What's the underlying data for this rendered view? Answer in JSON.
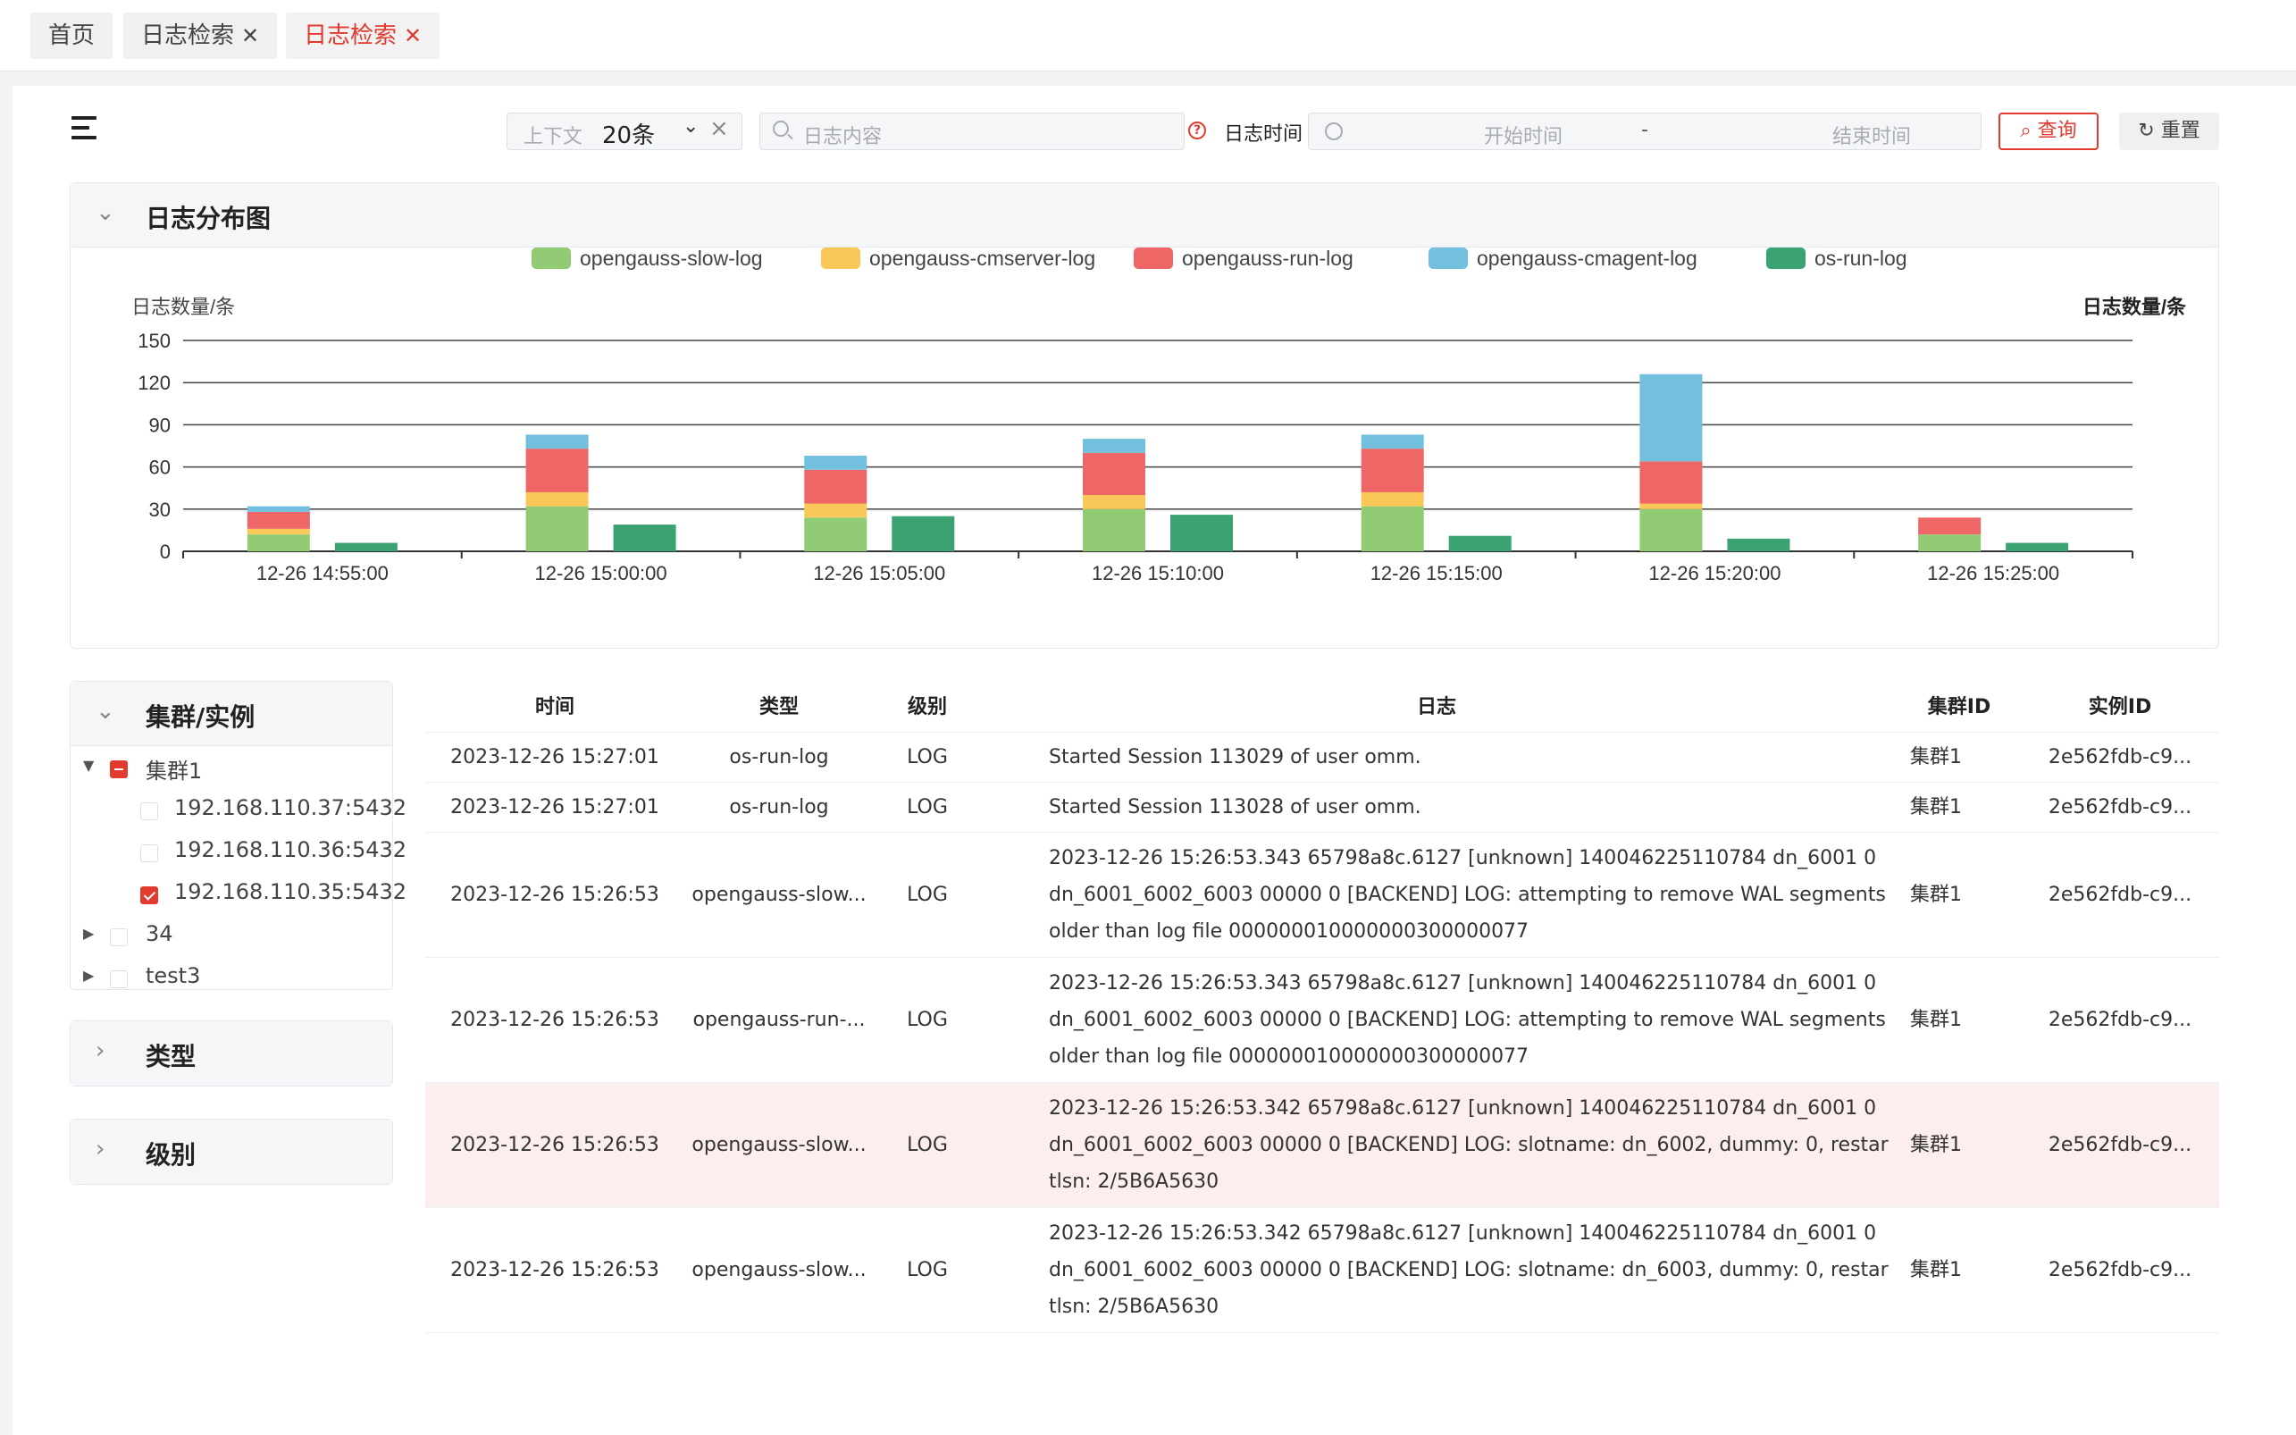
{
  "tabs": [
    {
      "label": "首页",
      "closable": false
    },
    {
      "label": "日志检索",
      "closable": true
    },
    {
      "label": "日志检索",
      "closable": true,
      "active": true
    }
  ],
  "toolbar": {
    "context_prefix": "上下文",
    "context_value": "20条",
    "search_placeholder": "日志内容",
    "time_label": "日志时间",
    "start_placeholder": "开始时间",
    "range_separator": "-",
    "end_placeholder": "结束时间",
    "query_label": "查询",
    "reset_label": "重置"
  },
  "chart_panel": {
    "title": "日志分布图"
  },
  "chart_data": {
    "type": "bar",
    "stacked": true,
    "ylabel": "日志数量/条",
    "ylabel_right": "日志数量/条",
    "ylim": [
      0,
      150
    ],
    "yticks": [
      0,
      30,
      60,
      90,
      120,
      150
    ],
    "categories": [
      "12-26 14:55:00",
      "12-26 15:00:00",
      "12-26 15:05:00",
      "12-26 15:10:00",
      "12-26 15:15:00",
      "12-26 15:20:00",
      "12-26 15:25:00"
    ],
    "legend_position": "top",
    "grid": true,
    "series": [
      {
        "name": "opengauss-slow-log",
        "color": "#91cc75",
        "stack": "opengauss",
        "values": [
          12,
          32,
          24,
          30,
          32,
          30,
          12
        ]
      },
      {
        "name": "opengauss-cmserver-log",
        "color": "#fac858",
        "stack": "opengauss",
        "values": [
          4,
          10,
          10,
          10,
          10,
          4,
          0
        ]
      },
      {
        "name": "opengauss-run-log",
        "color": "#ee6666",
        "stack": "opengauss",
        "values": [
          12,
          31,
          24,
          30,
          31,
          30,
          12
        ]
      },
      {
        "name": "opengauss-cmagent-log",
        "color": "#73c0de",
        "stack": "opengauss",
        "values": [
          4,
          10,
          10,
          10,
          10,
          62,
          0
        ]
      },
      {
        "name": "os-run-log",
        "color": "#3ba272",
        "stack": "os",
        "values": [
          6,
          19,
          25,
          26,
          11,
          9,
          6
        ]
      }
    ]
  },
  "filters": {
    "cluster_title": "集群/实例",
    "tree": [
      {
        "label": "集群1",
        "expanded": true,
        "state": "partial",
        "children": [
          {
            "label": "192.168.110.37:5432",
            "state": "unchecked"
          },
          {
            "label": "192.168.110.36:5432",
            "state": "unchecked"
          },
          {
            "label": "192.168.110.35:5432",
            "state": "checked"
          }
        ]
      },
      {
        "label": "34",
        "expanded": false,
        "state": "unchecked"
      },
      {
        "label": "test3",
        "expanded": false,
        "state": "unchecked"
      }
    ],
    "type_title": "类型",
    "level_title": "级别"
  },
  "table": {
    "headers": [
      "时间",
      "类型",
      "级别",
      "日志",
      "集群ID",
      "实例ID"
    ],
    "rows": [
      {
        "time": "2023-12-26 15:27:01",
        "type": "os-run-log",
        "level": "LOG",
        "log": "Started Session 113029 of user omm.",
        "cluster": "集群1",
        "instance": "2e562fdb-c9..."
      },
      {
        "time": "2023-12-26 15:27:01",
        "type": "os-run-log",
        "level": "LOG",
        "log": "Started Session 113028 of user omm.",
        "cluster": "集群1",
        "instance": "2e562fdb-c9..."
      },
      {
        "time": "2023-12-26 15:26:53",
        "type": "opengauss-slow...",
        "level": "LOG",
        "log": "2023-12-26 15:26:53.343 65798a8c.6127 [unknown] 140046225110784 dn_6001 0 dn_6001_6002_6003 00000 0 [BACKEND] LOG: attempting to remove WAL segments older than log file 000000010000000300000077",
        "cluster": "集群1",
        "instance": "2e562fdb-c9..."
      },
      {
        "time": "2023-12-26 15:26:53",
        "type": "opengauss-run-...",
        "level": "LOG",
        "log": "2023-12-26 15:26:53.343 65798a8c.6127 [unknown] 140046225110784 dn_6001 0 dn_6001_6002_6003 00000 0 [BACKEND] LOG: attempting to remove WAL segments older than log file 000000010000000300000077",
        "cluster": "集群1",
        "instance": "2e562fdb-c9..."
      },
      {
        "time": "2023-12-26 15:26:53",
        "type": "opengauss-slow...",
        "level": "LOG",
        "log": "2023-12-26 15:26:53.342 65798a8c.6127 [unknown] 140046225110784 dn_6001 0 dn_6001_6002_6003 00000 0 [BACKEND] LOG: slotname: dn_6002, dummy: 0, restartlsn: 2/5B6A5630",
        "cluster": "集群1",
        "instance": "2e562fdb-c9...",
        "highlighted": true
      },
      {
        "time": "2023-12-26 15:26:53",
        "type": "opengauss-slow...",
        "level": "LOG",
        "log": "2023-12-26 15:26:53.342 65798a8c.6127 [unknown] 140046225110784 dn_6001 0 dn_6001_6002_6003 00000 0 [BACKEND] LOG: slotname: dn_6003, dummy: 0, restartlsn: 2/5B6A5630",
        "cluster": "集群1",
        "instance": "2e562fdb-c9..."
      }
    ]
  }
}
